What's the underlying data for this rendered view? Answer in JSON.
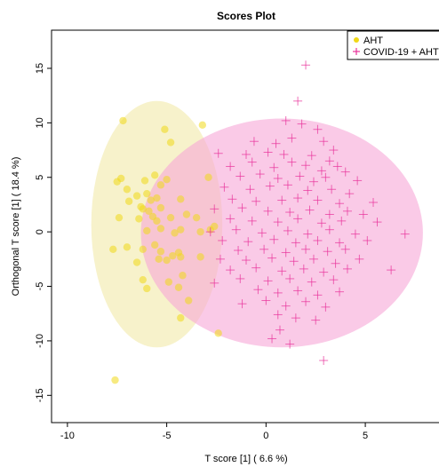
{
  "chart_data": {
    "type": "scatter",
    "title": "Scores Plot",
    "xlabel": "T score [1] ( 6.6 %)",
    "ylabel": "Orthogonal T score [1] ( 18.4 %)",
    "xlim": [
      -10.8,
      8.8
    ],
    "ylim": [
      -17.5,
      18.5
    ],
    "xticks": [
      -10,
      -5,
      0,
      5
    ],
    "yticks": [
      -15,
      -10,
      -5,
      0,
      5,
      10,
      15
    ],
    "grid": false,
    "legend_position": "top-right",
    "ellipses": [
      {
        "series": "AHT",
        "center": [
          -5.5,
          0.7
        ],
        "radii": [
          3.3,
          11.3
        ],
        "color": "#f2e9a8"
      },
      {
        "series": "COVID-19 + AHT",
        "center": [
          0.8,
          -0.1
        ],
        "radii": [
          7.1,
          10.5
        ],
        "color": "#f7a6d7"
      }
    ],
    "series": [
      {
        "name": "AHT",
        "marker": "circle",
        "color": "#f0d818",
        "points": [
          [
            -7.2,
            10.2
          ],
          [
            -5.1,
            9.4
          ],
          [
            -3.2,
            9.8
          ],
          [
            -4.8,
            8.2
          ],
          [
            -7.3,
            4.9
          ],
          [
            -7.5,
            4.6
          ],
          [
            -6.1,
            4.7
          ],
          [
            -5.6,
            5.2
          ],
          [
            -5.0,
            4.8
          ],
          [
            -5.3,
            4.3
          ],
          [
            -2.9,
            5.0
          ],
          [
            -7.0,
            3.9
          ],
          [
            -6.5,
            3.3
          ],
          [
            -6.0,
            3.5
          ],
          [
            -5.5,
            3.1
          ],
          [
            -5.8,
            2.9
          ],
          [
            -4.3,
            3.0
          ],
          [
            -6.9,
            2.8
          ],
          [
            -6.3,
            2.3
          ],
          [
            -6.2,
            2.1
          ],
          [
            -5.9,
            1.9
          ],
          [
            -5.3,
            2.2
          ],
          [
            -7.4,
            1.3
          ],
          [
            -6.4,
            1.2
          ],
          [
            -5.7,
            1.4
          ],
          [
            -5.5,
            1.0
          ],
          [
            -4.8,
            1.3
          ],
          [
            -4.0,
            1.6
          ],
          [
            -3.5,
            1.3
          ],
          [
            -2.6,
            0.5
          ],
          [
            -6.0,
            0.1
          ],
          [
            -5.3,
            0.3
          ],
          [
            -4.6,
            -0.1
          ],
          [
            -4.3,
            0.2
          ],
          [
            -3.3,
            0.0
          ],
          [
            -2.8,
            0.2
          ],
          [
            -7.7,
            -1.6
          ],
          [
            -7.0,
            -1.4
          ],
          [
            -6.2,
            -1.6
          ],
          [
            -5.6,
            -1.2
          ],
          [
            -5.3,
            -1.8
          ],
          [
            -4.7,
            -2.2
          ],
          [
            -4.4,
            -1.9
          ],
          [
            -3.3,
            -2.3
          ],
          [
            -6.5,
            -2.8
          ],
          [
            -5.4,
            -2.5
          ],
          [
            -5.0,
            -2.6
          ],
          [
            -4.3,
            -2.3
          ],
          [
            -6.2,
            -4.4
          ],
          [
            -4.9,
            -4.6
          ],
          [
            -4.2,
            -4.0
          ],
          [
            -4.4,
            -5.1
          ],
          [
            -6.0,
            -5.2
          ],
          [
            -3.9,
            -6.3
          ],
          [
            -4.3,
            -7.9
          ],
          [
            -2.4,
            -9.3
          ],
          [
            -7.6,
            -13.6
          ]
        ]
      },
      {
        "name": "COVID-19 + AHT",
        "marker": "plus",
        "color": "#e8309a",
        "points": [
          [
            2.0,
            15.3
          ],
          [
            1.6,
            12.0
          ],
          [
            1.0,
            10.2
          ],
          [
            1.8,
            9.9
          ],
          [
            2.6,
            9.4
          ],
          [
            -0.6,
            8.3
          ],
          [
            0.5,
            8.1
          ],
          [
            1.3,
            8.6
          ],
          [
            2.9,
            8.3
          ],
          [
            3.4,
            7.5
          ],
          [
            -1.0,
            7.1
          ],
          [
            0.1,
            7.3
          ],
          [
            0.9,
            7.1
          ],
          [
            2.3,
            7.0
          ],
          [
            3.2,
            6.5
          ],
          [
            -2.4,
            7.2
          ],
          [
            -1.8,
            6.0
          ],
          [
            -0.7,
            6.4
          ],
          [
            0.4,
            5.9
          ],
          [
            1.3,
            6.4
          ],
          [
            2.0,
            6.1
          ],
          [
            2.8,
            5.6
          ],
          [
            3.6,
            6.0
          ],
          [
            4.0,
            5.5
          ],
          [
            -1.3,
            5.1
          ],
          [
            -0.3,
            5.3
          ],
          [
            0.6,
            4.9
          ],
          [
            1.7,
            5.1
          ],
          [
            2.4,
            4.6
          ],
          [
            3.0,
            5.0
          ],
          [
            4.6,
            4.7
          ],
          [
            -2.1,
            4.1
          ],
          [
            -0.8,
            3.9
          ],
          [
            0.2,
            4.2
          ],
          [
            1.1,
            4.3
          ],
          [
            2.1,
            3.8
          ],
          [
            3.3,
            3.9
          ],
          [
            4.2,
            3.5
          ],
          [
            -1.7,
            3.0
          ],
          [
            -0.5,
            2.8
          ],
          [
            0.8,
            2.9
          ],
          [
            1.6,
            3.1
          ],
          [
            2.6,
            2.9
          ],
          [
            3.7,
            2.6
          ],
          [
            5.4,
            2.7
          ],
          [
            -2.6,
            2.1
          ],
          [
            -1.2,
            2.2
          ],
          [
            0.1,
            1.9
          ],
          [
            1.2,
            1.8
          ],
          [
            2.2,
            2.0
          ],
          [
            3.2,
            1.6
          ],
          [
            4.1,
            1.9
          ],
          [
            4.9,
            1.6
          ],
          [
            -1.8,
            1.2
          ],
          [
            -0.7,
            1.0
          ],
          [
            0.6,
            0.9
          ],
          [
            1.6,
            1.2
          ],
          [
            2.8,
            0.8
          ],
          [
            3.8,
            1.0
          ],
          [
            5.6,
            0.9
          ],
          [
            -2.8,
            0.0
          ],
          [
            -1.5,
            0.2
          ],
          [
            -0.2,
            -0.1
          ],
          [
            1.1,
            0.1
          ],
          [
            2.1,
            -0.2
          ],
          [
            3.2,
            0.2
          ],
          [
            4.5,
            -0.2
          ],
          [
            7.0,
            -0.2
          ],
          [
            -2.2,
            -0.8
          ],
          [
            -0.9,
            -0.9
          ],
          [
            0.4,
            -0.7
          ],
          [
            1.5,
            -1.0
          ],
          [
            2.6,
            -0.8
          ],
          [
            3.7,
            -1.0
          ],
          [
            5.1,
            -0.8
          ],
          [
            -1.4,
            -1.7
          ],
          [
            -0.1,
            -1.6
          ],
          [
            1.0,
            -1.9
          ],
          [
            2.0,
            -1.6
          ],
          [
            3.1,
            -1.8
          ],
          [
            4.0,
            -1.6
          ],
          [
            -2.3,
            -2.5
          ],
          [
            -1.0,
            -2.6
          ],
          [
            0.3,
            -2.4
          ],
          [
            1.4,
            -2.7
          ],
          [
            2.4,
            -2.5
          ],
          [
            3.5,
            -2.9
          ],
          [
            4.7,
            -2.5
          ],
          [
            6.3,
            -3.5
          ],
          [
            -1.8,
            -3.5
          ],
          [
            -0.5,
            -3.3
          ],
          [
            0.8,
            -3.6
          ],
          [
            1.9,
            -3.4
          ],
          [
            2.9,
            -3.7
          ],
          [
            4.1,
            -3.4
          ],
          [
            -2.6,
            -4.7
          ],
          [
            -1.3,
            -4.3
          ],
          [
            0.1,
            -4.5
          ],
          [
            1.2,
            -4.3
          ],
          [
            2.3,
            -4.6
          ],
          [
            3.4,
            -4.4
          ],
          [
            -0.4,
            -5.3
          ],
          [
            0.6,
            -5.6
          ],
          [
            1.6,
            -5.4
          ],
          [
            2.6,
            -5.8
          ],
          [
            3.7,
            -5.5
          ],
          [
            -1.2,
            -6.6
          ],
          [
            0.0,
            -6.3
          ],
          [
            1.0,
            -6.8
          ],
          [
            2.0,
            -6.4
          ],
          [
            3.0,
            -6.9
          ],
          [
            0.6,
            -7.6
          ],
          [
            1.5,
            -7.9
          ],
          [
            2.5,
            -8.1
          ],
          [
            0.7,
            -9.0
          ],
          [
            0.3,
            -9.8
          ],
          [
            1.2,
            -10.3
          ],
          [
            2.9,
            -11.8
          ]
        ]
      }
    ]
  }
}
